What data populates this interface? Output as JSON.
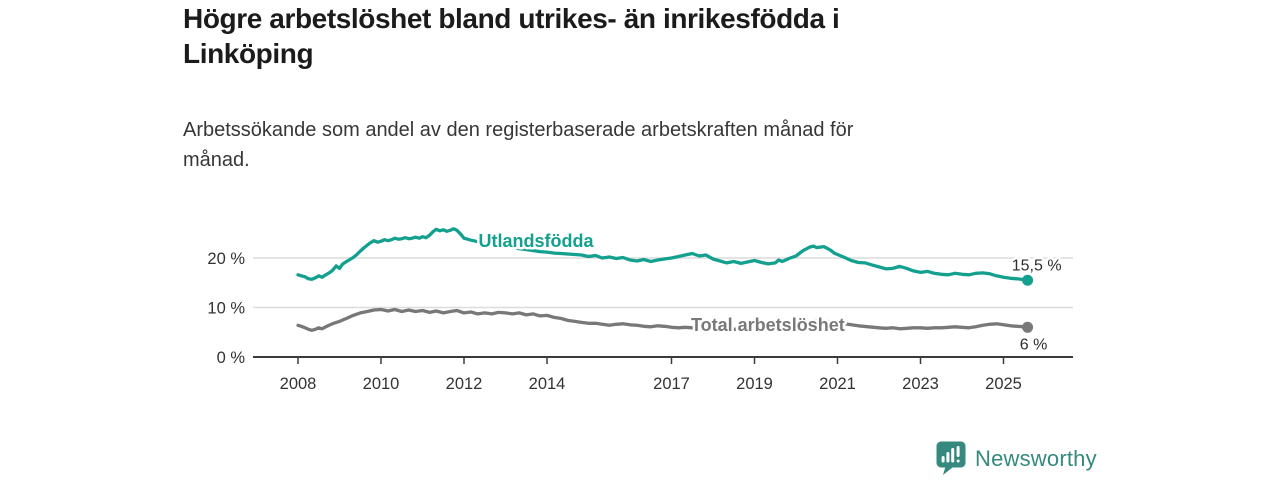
{
  "header": {
    "title_lines": [
      "Högre arbetslöshet bland utrikes- än inrikesfödda i",
      "Linköping"
    ],
    "subtitle_lines": [
      "Arbetssökande som andel av den registerbaserade arbetskraften månad för",
      "månad."
    ]
  },
  "footer": {
    "brand": "Newsworthy",
    "logo_icon": "newsworthy-speech-bubble-bar-chart-icon",
    "brand_color": "#35897e"
  },
  "chart_data": {
    "type": "line",
    "title": "Högre arbetslöshet bland utrikes- än inrikesfödda i Linköping",
    "subtitle": "Arbetssökande som andel av den registerbaserade arbetskraften månad för månad.",
    "x_domain": [
      2008,
      2025.58
    ],
    "ylim": [
      0,
      27
    ],
    "grid": "horizontal-gridlines-at-10-and-20",
    "legend_position": "inline-labels-on-lines",
    "axis_color": "#3a3a3a",
    "gridline_color": "#dcdcdc",
    "tick_label_color": "#333333",
    "x_ticks": [
      2008,
      2010,
      2012,
      2014,
      2017,
      2019,
      2021,
      2023,
      2025
    ],
    "y_ticks": [
      {
        "value": 0,
        "label": "0 %"
      },
      {
        "value": 10,
        "label": "10 %"
      },
      {
        "value": 20,
        "label": "20 %"
      }
    ],
    "series": [
      {
        "name": "Utlandsfödda",
        "slug": "utlandsfodda",
        "color": "#13a08f",
        "end_label": "15,5 %",
        "label_at": {
          "x": 2012.35,
          "v": 23.4,
          "anchor": "start"
        },
        "end_label_offset": {
          "dx": 34,
          "dy": -10,
          "anchor": "end"
        },
        "points": [
          [
            2008.0,
            16.6
          ],
          [
            2008.08,
            16.4
          ],
          [
            2008.17,
            16.2
          ],
          [
            2008.25,
            15.8
          ],
          [
            2008.33,
            15.7
          ],
          [
            2008.42,
            16.0
          ],
          [
            2008.5,
            16.4
          ],
          [
            2008.58,
            16.1
          ],
          [
            2008.67,
            16.6
          ],
          [
            2008.75,
            17.0
          ],
          [
            2008.83,
            17.5
          ],
          [
            2008.92,
            18.4
          ],
          [
            2009.0,
            17.9
          ],
          [
            2009.08,
            18.8
          ],
          [
            2009.17,
            19.3
          ],
          [
            2009.25,
            19.7
          ],
          [
            2009.33,
            20.1
          ],
          [
            2009.42,
            20.7
          ],
          [
            2009.5,
            21.4
          ],
          [
            2009.58,
            22.0
          ],
          [
            2009.67,
            22.6
          ],
          [
            2009.75,
            23.1
          ],
          [
            2009.83,
            23.5
          ],
          [
            2009.92,
            23.2
          ],
          [
            2010.0,
            23.4
          ],
          [
            2010.08,
            23.7
          ],
          [
            2010.17,
            23.5
          ],
          [
            2010.25,
            23.7
          ],
          [
            2010.33,
            24.0
          ],
          [
            2010.42,
            23.8
          ],
          [
            2010.5,
            23.9
          ],
          [
            2010.58,
            24.1
          ],
          [
            2010.67,
            23.9
          ],
          [
            2010.75,
            24.0
          ],
          [
            2010.83,
            24.2
          ],
          [
            2010.92,
            24.0
          ],
          [
            2011.0,
            24.3
          ],
          [
            2011.08,
            24.1
          ],
          [
            2011.17,
            24.6
          ],
          [
            2011.25,
            25.3
          ],
          [
            2011.33,
            25.8
          ],
          [
            2011.42,
            25.5
          ],
          [
            2011.5,
            25.7
          ],
          [
            2011.58,
            25.4
          ],
          [
            2011.67,
            25.6
          ],
          [
            2011.75,
            25.9
          ],
          [
            2011.83,
            25.6
          ],
          [
            2011.92,
            24.8
          ],
          [
            2012.0,
            24.0
          ],
          [
            2012.17,
            23.6
          ],
          [
            2012.33,
            23.3
          ],
          [
            2012.5,
            23.0
          ],
          [
            2012.67,
            22.7
          ],
          [
            2012.83,
            22.5
          ],
          [
            2013.0,
            22.3
          ],
          [
            2013.17,
            22.1
          ],
          [
            2013.33,
            21.9
          ],
          [
            2013.5,
            21.7
          ],
          [
            2013.67,
            21.5
          ],
          [
            2013.83,
            21.3
          ],
          [
            2014.0,
            21.2
          ],
          [
            2014.17,
            21.0
          ],
          [
            2014.33,
            20.9
          ],
          [
            2014.5,
            20.8
          ],
          [
            2014.67,
            20.7
          ],
          [
            2014.83,
            20.6
          ],
          [
            2015.0,
            20.3
          ],
          [
            2015.17,
            20.5
          ],
          [
            2015.33,
            20.0
          ],
          [
            2015.5,
            20.2
          ],
          [
            2015.67,
            19.9
          ],
          [
            2015.83,
            20.1
          ],
          [
            2016.0,
            19.6
          ],
          [
            2016.17,
            19.4
          ],
          [
            2016.33,
            19.7
          ],
          [
            2016.5,
            19.3
          ],
          [
            2016.67,
            19.6
          ],
          [
            2016.83,
            19.8
          ],
          [
            2017.0,
            20.0
          ],
          [
            2017.17,
            20.3
          ],
          [
            2017.33,
            20.6
          ],
          [
            2017.5,
            20.9
          ],
          [
            2017.67,
            20.4
          ],
          [
            2017.83,
            20.6
          ],
          [
            2018.0,
            19.8
          ],
          [
            2018.17,
            19.4
          ],
          [
            2018.33,
            19.0
          ],
          [
            2018.5,
            19.3
          ],
          [
            2018.67,
            18.9
          ],
          [
            2018.83,
            19.2
          ],
          [
            2019.0,
            19.5
          ],
          [
            2019.17,
            19.1
          ],
          [
            2019.33,
            18.8
          ],
          [
            2019.5,
            19.0
          ],
          [
            2019.58,
            19.6
          ],
          [
            2019.67,
            19.3
          ],
          [
            2019.83,
            19.9
          ],
          [
            2020.0,
            20.4
          ],
          [
            2020.17,
            21.5
          ],
          [
            2020.33,
            22.2
          ],
          [
            2020.42,
            22.4
          ],
          [
            2020.5,
            22.1
          ],
          [
            2020.67,
            22.3
          ],
          [
            2020.83,
            21.6
          ],
          [
            2020.92,
            21.0
          ],
          [
            2021.0,
            20.7
          ],
          [
            2021.17,
            20.1
          ],
          [
            2021.33,
            19.5
          ],
          [
            2021.5,
            19.1
          ],
          [
            2021.67,
            19.0
          ],
          [
            2021.83,
            18.6
          ],
          [
            2022.0,
            18.2
          ],
          [
            2022.17,
            17.8
          ],
          [
            2022.33,
            17.9
          ],
          [
            2022.5,
            18.3
          ],
          [
            2022.67,
            17.9
          ],
          [
            2022.83,
            17.4
          ],
          [
            2023.0,
            17.1
          ],
          [
            2023.17,
            17.3
          ],
          [
            2023.33,
            16.9
          ],
          [
            2023.5,
            16.7
          ],
          [
            2023.67,
            16.6
          ],
          [
            2023.83,
            16.9
          ],
          [
            2024.0,
            16.7
          ],
          [
            2024.17,
            16.6
          ],
          [
            2024.33,
            16.9
          ],
          [
            2024.5,
            17.0
          ],
          [
            2024.67,
            16.8
          ],
          [
            2024.83,
            16.4
          ],
          [
            2025.0,
            16.1
          ],
          [
            2025.17,
            15.9
          ],
          [
            2025.33,
            15.8
          ],
          [
            2025.5,
            15.6
          ],
          [
            2025.58,
            15.5
          ]
        ]
      },
      {
        "name": "Total arbetslöshet",
        "slug": "total-arbetsloshet",
        "color": "#787878",
        "end_label": "6 %",
        "label_at": {
          "x": 2017.47,
          "v": 6.5,
          "anchor": "start"
        },
        "end_label_offset": {
          "dx": 6,
          "dy": 22,
          "anchor": "middle"
        },
        "points": [
          [
            2008.0,
            6.4
          ],
          [
            2008.08,
            6.2
          ],
          [
            2008.17,
            5.9
          ],
          [
            2008.25,
            5.6
          ],
          [
            2008.33,
            5.4
          ],
          [
            2008.42,
            5.6
          ],
          [
            2008.5,
            5.9
          ],
          [
            2008.58,
            5.7
          ],
          [
            2008.67,
            6.1
          ],
          [
            2008.75,
            6.4
          ],
          [
            2008.83,
            6.7
          ],
          [
            2008.92,
            7.0
          ],
          [
            2009.0,
            7.2
          ],
          [
            2009.17,
            7.8
          ],
          [
            2009.33,
            8.4
          ],
          [
            2009.5,
            8.9
          ],
          [
            2009.67,
            9.2
          ],
          [
            2009.83,
            9.5
          ],
          [
            2010.0,
            9.6
          ],
          [
            2010.17,
            9.3
          ],
          [
            2010.33,
            9.6
          ],
          [
            2010.5,
            9.2
          ],
          [
            2010.67,
            9.5
          ],
          [
            2010.83,
            9.2
          ],
          [
            2011.0,
            9.4
          ],
          [
            2011.17,
            9.0
          ],
          [
            2011.33,
            9.3
          ],
          [
            2011.5,
            8.9
          ],
          [
            2011.67,
            9.2
          ],
          [
            2011.83,
            9.4
          ],
          [
            2012.0,
            8.9
          ],
          [
            2012.17,
            9.1
          ],
          [
            2012.33,
            8.7
          ],
          [
            2012.5,
            8.9
          ],
          [
            2012.67,
            8.7
          ],
          [
            2012.83,
            9.0
          ],
          [
            2013.0,
            8.9
          ],
          [
            2013.17,
            8.7
          ],
          [
            2013.33,
            8.9
          ],
          [
            2013.5,
            8.5
          ],
          [
            2013.67,
            8.7
          ],
          [
            2013.83,
            8.3
          ],
          [
            2014.0,
            8.4
          ],
          [
            2014.17,
            8.0
          ],
          [
            2014.33,
            7.8
          ],
          [
            2014.5,
            7.4
          ],
          [
            2014.67,
            7.2
          ],
          [
            2014.83,
            7.0
          ],
          [
            2015.0,
            6.8
          ],
          [
            2015.17,
            6.8
          ],
          [
            2015.33,
            6.6
          ],
          [
            2015.5,
            6.4
          ],
          [
            2015.67,
            6.6
          ],
          [
            2015.83,
            6.7
          ],
          [
            2016.0,
            6.5
          ],
          [
            2016.17,
            6.4
          ],
          [
            2016.33,
            6.2
          ],
          [
            2016.5,
            6.1
          ],
          [
            2016.67,
            6.3
          ],
          [
            2016.83,
            6.2
          ],
          [
            2017.0,
            6.0
          ],
          [
            2017.17,
            5.9
          ],
          [
            2017.33,
            6.0
          ],
          [
            2017.5,
            5.9
          ],
          [
            2017.67,
            5.8
          ],
          [
            2017.83,
            5.9
          ],
          [
            2018.0,
            5.8
          ],
          [
            2018.25,
            5.7
          ],
          [
            2018.5,
            5.6
          ],
          [
            2018.75,
            5.7
          ],
          [
            2019.0,
            5.6
          ],
          [
            2019.25,
            5.7
          ],
          [
            2019.5,
            5.8
          ],
          [
            2019.75,
            6.0
          ],
          [
            2020.0,
            6.3
          ],
          [
            2020.25,
            7.1
          ],
          [
            2020.42,
            7.4
          ],
          [
            2020.58,
            7.3
          ],
          [
            2020.75,
            7.2
          ],
          [
            2021.0,
            7.0
          ],
          [
            2021.25,
            6.6
          ],
          [
            2021.5,
            6.3
          ],
          [
            2021.75,
            6.1
          ],
          [
            2022.0,
            5.9
          ],
          [
            2022.17,
            5.8
          ],
          [
            2022.33,
            5.9
          ],
          [
            2022.5,
            5.7
          ],
          [
            2022.67,
            5.8
          ],
          [
            2022.83,
            5.9
          ],
          [
            2023.0,
            5.9
          ],
          [
            2023.17,
            5.8
          ],
          [
            2023.33,
            5.9
          ],
          [
            2023.5,
            5.9
          ],
          [
            2023.67,
            6.0
          ],
          [
            2023.83,
            6.1
          ],
          [
            2024.0,
            6.0
          ],
          [
            2024.17,
            5.9
          ],
          [
            2024.33,
            6.1
          ],
          [
            2024.5,
            6.4
          ],
          [
            2024.67,
            6.6
          ],
          [
            2024.83,
            6.7
          ],
          [
            2025.0,
            6.5
          ],
          [
            2025.17,
            6.3
          ],
          [
            2025.33,
            6.2
          ],
          [
            2025.5,
            6.1
          ],
          [
            2025.58,
            6.0
          ]
        ]
      }
    ]
  }
}
